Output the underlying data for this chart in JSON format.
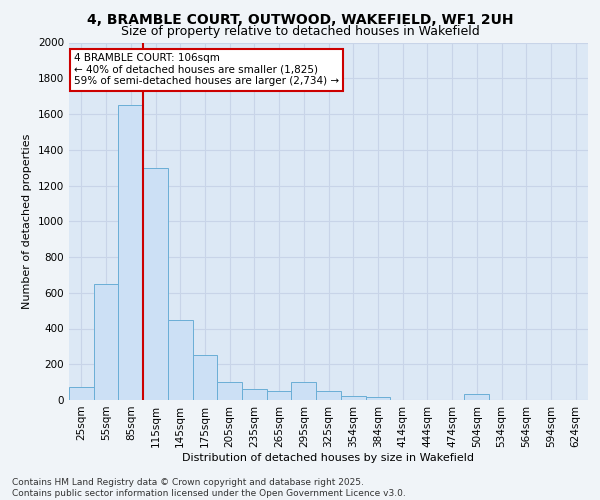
{
  "title_line1": "4, BRAMBLE COURT, OUTWOOD, WAKEFIELD, WF1 2UH",
  "title_line2": "Size of property relative to detached houses in Wakefield",
  "xlabel": "Distribution of detached houses by size in Wakefield",
  "ylabel": "Number of detached properties",
  "categories": [
    "25sqm",
    "55sqm",
    "85sqm",
    "115sqm",
    "145sqm",
    "175sqm",
    "205sqm",
    "235sqm",
    "265sqm",
    "295sqm",
    "325sqm",
    "354sqm",
    "384sqm",
    "414sqm",
    "444sqm",
    "474sqm",
    "504sqm",
    "534sqm",
    "564sqm",
    "594sqm",
    "624sqm"
  ],
  "values": [
    70,
    650,
    1650,
    1300,
    450,
    250,
    100,
    60,
    50,
    100,
    50,
    25,
    15,
    0,
    0,
    0,
    35,
    0,
    0,
    0,
    0
  ],
  "bar_color": "#cce0f5",
  "bar_edge_color": "#6aaed6",
  "grid_color": "#c8d4e8",
  "background_color": "#dce8f5",
  "vline_color": "#cc0000",
  "annotation_text": "4 BRAMBLE COURT: 106sqm\n← 40% of detached houses are smaller (1,825)\n59% of semi-detached houses are larger (2,734) →",
  "annotation_box_color": "#ffffff",
  "annotation_box_edge": "#cc0000",
  "ylim": [
    0,
    2000
  ],
  "yticks": [
    0,
    200,
    400,
    600,
    800,
    1000,
    1200,
    1400,
    1600,
    1800,
    2000
  ],
  "footer_line1": "Contains HM Land Registry data © Crown copyright and database right 2025.",
  "footer_line2": "Contains public sector information licensed under the Open Government Licence v3.0.",
  "title_fontsize": 10,
  "subtitle_fontsize": 9,
  "axis_label_fontsize": 8,
  "tick_fontsize": 7.5,
  "annotation_fontsize": 7.5,
  "footer_fontsize": 6.5,
  "fig_facecolor": "#f0f4f8"
}
